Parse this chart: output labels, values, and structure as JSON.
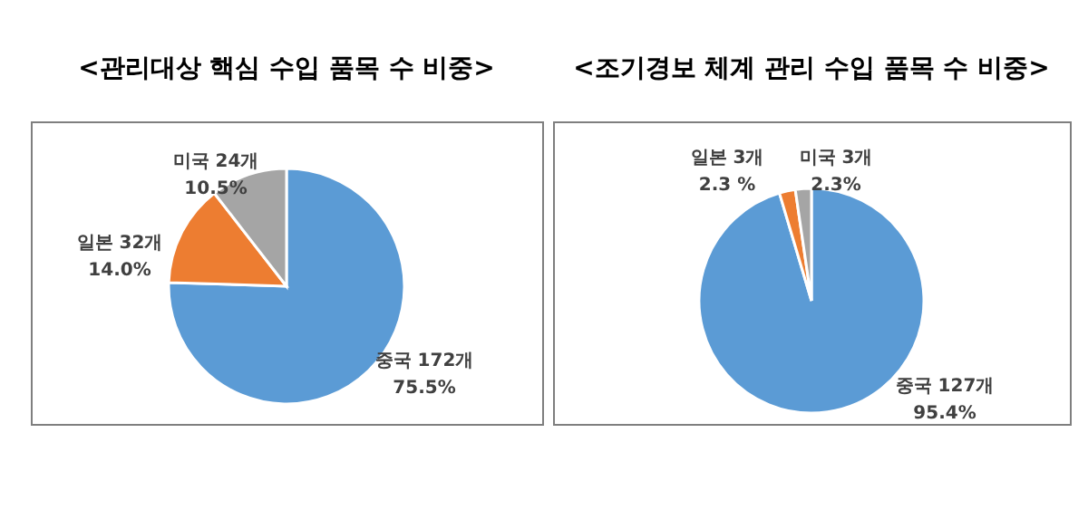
{
  "chart_data": [
    {
      "type": "pie",
      "title": "<관리대상 핵심 수입 품목 수 비중>",
      "categories": [
        "중국",
        "일본",
        "미국"
      ],
      "values": [
        75.5,
        14.0,
        10.5
      ],
      "colors": [
        "#5b9bd5",
        "#ed7d31",
        "#a5a5a5"
      ],
      "value_labels": [
        "172개\n75.5%",
        "32개\n14.0%",
        "24개\n10.5%"
      ]
    },
    {
      "type": "pie",
      "title": "<조기경보 체계 관리 수입 품목 수 비중>",
      "categories": [
        "중국",
        "일본",
        "미국"
      ],
      "values": [
        95.4,
        2.3,
        2.3
      ],
      "colors": [
        "#5b9bd5",
        "#ed7d31",
        "#a5a5a5"
      ],
      "value_labels": [
        "127개\n95.4%",
        "3개\n2.3 %",
        "3개\n2.3%"
      ]
    }
  ]
}
